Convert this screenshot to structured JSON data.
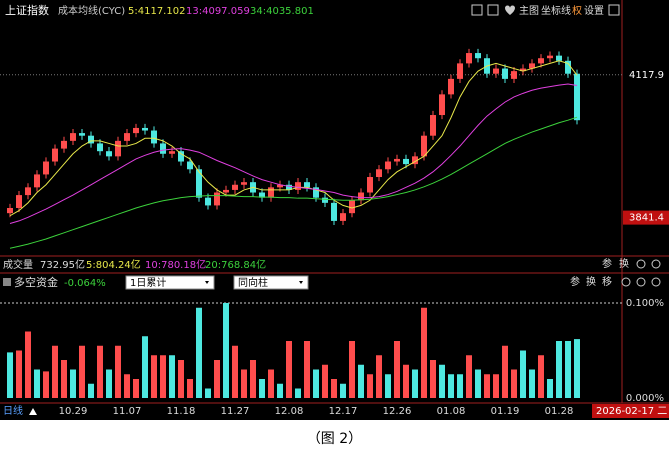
{
  "toolbar": {
    "title": "上证指数",
    "indicator": "成本均线(CYC)",
    "buttons": [
      "主图",
      "坐标线",
      "权",
      "设置"
    ]
  },
  "chart_data": [
    {
      "type": "candlestick",
      "categories": [
        null,
        null,
        null,
        null,
        null,
        null,
        null,
        "10.29",
        null,
        null,
        null,
        null,
        null,
        "11.07",
        null,
        null,
        null,
        null,
        null,
        "11.18",
        null,
        null,
        null,
        null,
        null,
        "11.27",
        null,
        null,
        null,
        null,
        null,
        "12.08",
        null,
        null,
        null,
        null,
        null,
        "12.17",
        null,
        null,
        null,
        null,
        null,
        "12.26",
        null,
        null,
        null,
        null,
        null,
        "01.08",
        null,
        null,
        null,
        null,
        null,
        "01.19",
        null,
        null,
        null,
        null,
        null,
        "01.28",
        null,
        null
      ],
      "open": [
        3850,
        3860,
        3885,
        3900,
        3925,
        3950,
        3975,
        3990,
        4005,
        4000,
        3985,
        3970,
        3960,
        3990,
        4005,
        4015,
        4010,
        3985,
        3965,
        3970,
        3950,
        3935,
        3880,
        3865,
        3890,
        3895,
        3905,
        3910,
        3890,
        3880,
        3900,
        3905,
        3895,
        3910,
        3900,
        3880,
        3870,
        3835,
        3850,
        3875,
        3890,
        3920,
        3935,
        3950,
        3955,
        3945,
        3960,
        4000,
        4040,
        4080,
        4110,
        4140,
        4160,
        4150,
        4120,
        4130,
        4110,
        4125,
        4130,
        4140,
        4150,
        4155,
        4145,
        4120
      ],
      "high": [
        3868,
        3893,
        3908,
        3933,
        3958,
        3983,
        3998,
        4013,
        4013,
        4008,
        3993,
        3978,
        3998,
        4013,
        4023,
        4023,
        4018,
        3993,
        3978,
        3978,
        3958,
        3943,
        3888,
        3898,
        3903,
        3913,
        3918,
        3918,
        3898,
        3908,
        3913,
        3913,
        3918,
        3918,
        3908,
        3888,
        3878,
        3858,
        3883,
        3898,
        3928,
        3943,
        3958,
        3963,
        3963,
        3968,
        4008,
        4048,
        4088,
        4118,
        4148,
        4168,
        4168,
        4158,
        4138,
        4138,
        4133,
        4138,
        4148,
        4158,
        4163,
        4163,
        4153,
        4128
      ],
      "low": [
        3842,
        3852,
        3877,
        3892,
        3917,
        3942,
        3967,
        3982,
        3992,
        3977,
        3962,
        3952,
        3952,
        3982,
        3997,
        4002,
        3977,
        3957,
        3957,
        3942,
        3927,
        3872,
        3857,
        3857,
        3882,
        3887,
        3897,
        3882,
        3872,
        3872,
        3892,
        3887,
        3887,
        3892,
        3872,
        3862,
        3827,
        3827,
        3842,
        3867,
        3882,
        3912,
        3927,
        3942,
        3937,
        3937,
        3952,
        3992,
        4032,
        4072,
        4102,
        4132,
        4142,
        4112,
        4112,
        4102,
        4102,
        4117,
        4122,
        4132,
        4142,
        4137,
        4112,
        4022
      ],
      "close": [
        3860,
        3885,
        3900,
        3925,
        3950,
        3975,
        3990,
        4005,
        4000,
        3985,
        3970,
        3960,
        3990,
        4005,
        4015,
        4010,
        3985,
        3965,
        3970,
        3950,
        3935,
        3880,
        3865,
        3890,
        3895,
        3905,
        3910,
        3890,
        3880,
        3900,
        3905,
        3895,
        3910,
        3900,
        3880,
        3870,
        3835,
        3850,
        3875,
        3890,
        3920,
        3935,
        3950,
        3955,
        3945,
        3960,
        4000,
        4040,
        4080,
        4110,
        4140,
        4160,
        4150,
        4120,
        4130,
        4110,
        4125,
        4130,
        4140,
        4150,
        4155,
        4145,
        4120,
        4030
      ],
      "up_color": "#ff4d4d",
      "down_color": "#4ee8e0",
      "series": [
        {
          "name": "5:4117.102",
          "color": "#e8e84a",
          "values": [
            3845,
            3855,
            3870,
            3890,
            3905,
            3925,
            3945,
            3965,
            3980,
            3990,
            3990,
            3985,
            3980,
            3980,
            3985,
            3995,
            3995,
            3990,
            3980,
            3965,
            3955,
            3930,
            3910,
            3895,
            3885,
            3885,
            3895,
            3900,
            3895,
            3895,
            3895,
            3895,
            3900,
            3900,
            3895,
            3890,
            3875,
            3865,
            3860,
            3865,
            3875,
            3895,
            3915,
            3930,
            3940,
            3950,
            3960,
            3980,
            4000,
            4035,
            4075,
            4105,
            4125,
            4135,
            4140,
            4135,
            4130,
            4125,
            4130,
            4135,
            4140,
            4145,
            4140,
            4117.1
          ]
        },
        {
          "name": "13:4097.059",
          "color": "#e040e0",
          "values": [
            3830,
            3835,
            3842,
            3850,
            3858,
            3867,
            3876,
            3885,
            3895,
            3905,
            3915,
            3925,
            3935,
            3945,
            3955,
            3962,
            3968,
            3972,
            3974,
            3975,
            3972,
            3968,
            3960,
            3952,
            3945,
            3938,
            3930,
            3922,
            3915,
            3910,
            3905,
            3902,
            3900,
            3898,
            3896,
            3893,
            3890,
            3885,
            3882,
            3880,
            3880,
            3882,
            3886,
            3892,
            3900,
            3908,
            3918,
            3930,
            3945,
            3962,
            3980,
            4000,
            4020,
            4038,
            4052,
            4065,
            4075,
            4082,
            4088,
            4092,
            4095,
            4098,
            4100,
            4097.1
          ]
        },
        {
          "name": "34:4035.801",
          "color": "#3cd23c",
          "values": [
            3782,
            3786,
            3790,
            3795,
            3800,
            3806,
            3812,
            3818,
            3824,
            3830,
            3836,
            3842,
            3848,
            3854,
            3860,
            3865,
            3870,
            3874,
            3877,
            3880,
            3882,
            3883,
            3884,
            3884,
            3884,
            3883,
            3882,
            3882,
            3881,
            3881,
            3880,
            3880,
            3879,
            3879,
            3878,
            3877,
            3876,
            3875,
            3875,
            3876,
            3877,
            3879,
            3882,
            3886,
            3890,
            3895,
            3901,
            3908,
            3916,
            3925,
            3935,
            3945,
            3955,
            3965,
            3975,
            3985,
            3993,
            4000,
            4007,
            4013,
            4019,
            4025,
            4030,
            4035.8
          ]
        }
      ],
      "ylim": [
        3769,
        4224
      ],
      "yticks": [
        4117.9,
        3841.4
      ],
      "grid": true
    },
    {
      "type": "bar",
      "title": "多空资金",
      "subtitle": "-0.064%",
      "values": [
        0.048,
        0.05,
        0.07,
        0.03,
        0.028,
        0.055,
        0.04,
        0.03,
        0.055,
        0.015,
        0.055,
        0.03,
        0.055,
        0.025,
        0.02,
        0.065,
        0.045,
        0.045,
        0.045,
        0.04,
        0.02,
        0.095,
        0.01,
        0.04,
        0.1,
        0.055,
        0.03,
        0.04,
        0.02,
        0.03,
        0.015,
        0.06,
        0.01,
        0.06,
        0.03,
        0.035,
        0.02,
        0.015,
        0.06,
        0.035,
        0.025,
        0.045,
        0.025,
        0.06,
        0.035,
        0.03,
        0.095,
        0.04,
        0.035,
        0.025,
        0.025,
        0.045,
        0.03,
        0.025,
        0.025,
        0.055,
        0.03,
        0.05,
        0.03,
        0.045,
        0.02,
        0.06,
        0.06,
        0.062
      ],
      "colors": [
        "#4ee8e0",
        "#ff4d4d",
        "#ff4d4d",
        "#4ee8e0",
        "#ff4d4d",
        "#ff4d4d",
        "#ff4d4d",
        "#4ee8e0",
        "#ff4d4d",
        "#4ee8e0",
        "#ff4d4d",
        "#4ee8e0",
        "#ff4d4d",
        "#ff4d4d",
        "#ff4d4d",
        "#4ee8e0",
        "#ff4d4d",
        "#ff4d4d",
        "#4ee8e0",
        "#ff4d4d",
        "#ff4d4d",
        "#4ee8e0",
        "#4ee8e0",
        "#ff4d4d",
        "#4ee8e0",
        "#ff4d4d",
        "#ff4d4d",
        "#ff4d4d",
        "#4ee8e0",
        "#ff4d4d",
        "#4ee8e0",
        "#ff4d4d",
        "#4ee8e0",
        "#ff4d4d",
        "#4ee8e0",
        "#ff4d4d",
        "#ff4d4d",
        "#4ee8e0",
        "#ff4d4d",
        "#4ee8e0",
        "#ff4d4d",
        "#ff4d4d",
        "#4ee8e0",
        "#ff4d4d",
        "#ff4d4d",
        "#4ee8e0",
        "#ff4d4d",
        "#ff4d4d",
        "#4ee8e0",
        "#4ee8e0",
        "#4ee8e0",
        "#ff4d4d",
        "#4ee8e0",
        "#ff4d4d",
        "#ff4d4d",
        "#ff4d4d",
        "#ff4d4d",
        "#4ee8e0",
        "#4ee8e0",
        "#ff4d4d",
        "#4ee8e0",
        "#4ee8e0",
        "#4ee8e0",
        "#4ee8e0"
      ],
      "ylim": [
        0,
        0.1
      ],
      "yticks": [
        {
          "value": 0.1,
          "label": "0.100%"
        },
        {
          "value": 0,
          "label": "0.000%"
        }
      ],
      "grid": true
    }
  ],
  "volume_header": {
    "label": "成交量",
    "value": "732.95亿",
    "ma": [
      "5:804.24亿",
      "10:780.18亿",
      "20:768.84亿"
    ],
    "buttons": [
      "参",
      "换"
    ]
  },
  "fund_panel": {
    "dropdowns": [
      "1日累计",
      "同向柱"
    ],
    "buttons": [
      "参",
      "换",
      "移"
    ]
  },
  "footer": {
    "period": "日线",
    "date": "2026-02-17 二"
  },
  "caption": "（图 2）"
}
